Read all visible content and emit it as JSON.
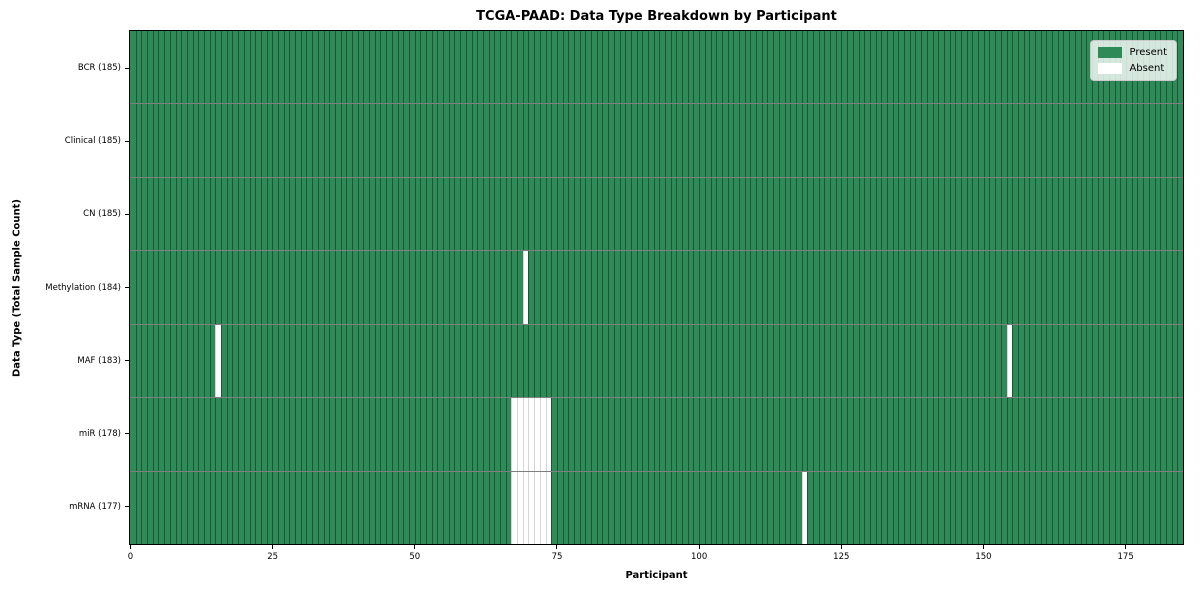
{
  "chart_data": {
    "type": "heatmap",
    "title": "TCGA-PAAD: Data Type Breakdown by Participant",
    "xlabel": "Participant",
    "ylabel": "Data Type (Total Sample Count)",
    "x_ticks": [
      0,
      25,
      50,
      75,
      100,
      125,
      150,
      175
    ],
    "x_range": [
      0,
      185
    ],
    "n_participants": 185,
    "grid": true,
    "legend_position": "upper right",
    "legend": [
      {
        "label": "Present",
        "color": "#2e8b57"
      },
      {
        "label": "Absent",
        "color": "#ffffff"
      }
    ],
    "colors": {
      "present": "#2e8b57",
      "absent": "#ffffff"
    },
    "rows": [
      {
        "label": "BCR (185)",
        "data_type": "BCR",
        "present_count": 185,
        "absent_participants": []
      },
      {
        "label": "Clinical (185)",
        "data_type": "Clinical",
        "present_count": 185,
        "absent_participants": []
      },
      {
        "label": "CN (185)",
        "data_type": "CN",
        "present_count": 185,
        "absent_participants": []
      },
      {
        "label": "Methylation (184)",
        "data_type": "Methylation",
        "present_count": 184,
        "absent_participants": [
          69
        ]
      },
      {
        "label": "MAF (183)",
        "data_type": "MAF",
        "present_count": 183,
        "absent_participants": [
          15,
          154
        ]
      },
      {
        "label": "miR (178)",
        "data_type": "miR",
        "present_count": 178,
        "absent_participants": [
          67,
          68,
          69,
          70,
          71,
          72,
          73
        ]
      },
      {
        "label": "mRNA (177)",
        "data_type": "mRNA",
        "present_count": 177,
        "absent_participants": [
          67,
          68,
          69,
          70,
          71,
          72,
          73,
          118
        ]
      }
    ]
  }
}
